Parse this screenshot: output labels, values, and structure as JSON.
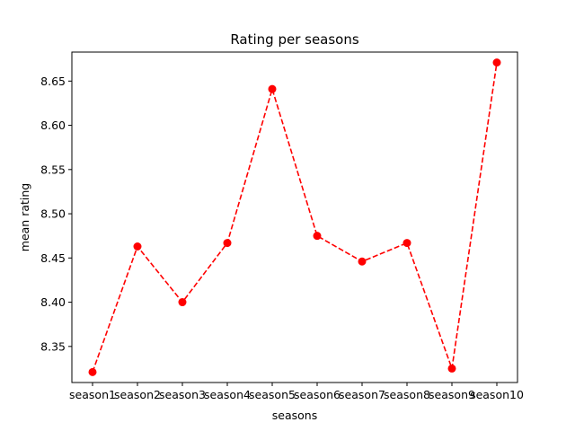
{
  "chart_data": {
    "type": "line",
    "title": "Rating per seasons",
    "xlabel": "seasons",
    "ylabel": "mean rating",
    "categories": [
      "season1",
      "season2",
      "season3",
      "season4",
      "season5",
      "season6",
      "season7",
      "season8",
      "season9",
      "season10"
    ],
    "series": [
      {
        "values": [
          8.321,
          8.463,
          8.4,
          8.467,
          8.641,
          8.475,
          8.446,
          8.467,
          8.325,
          8.671
        ],
        "color": "#ff0000",
        "line_style": "dashed",
        "marker": "circle"
      }
    ],
    "ylim": [
      8.3092,
      8.6828
    ],
    "yticks": [
      8.35,
      8.4,
      8.45,
      8.5,
      8.55,
      8.6,
      8.65
    ],
    "ytick_labels": [
      "8.35",
      "8.40",
      "8.45",
      "8.50",
      "8.55",
      "8.60",
      "8.65"
    ],
    "grid": false,
    "legend": "none"
  }
}
